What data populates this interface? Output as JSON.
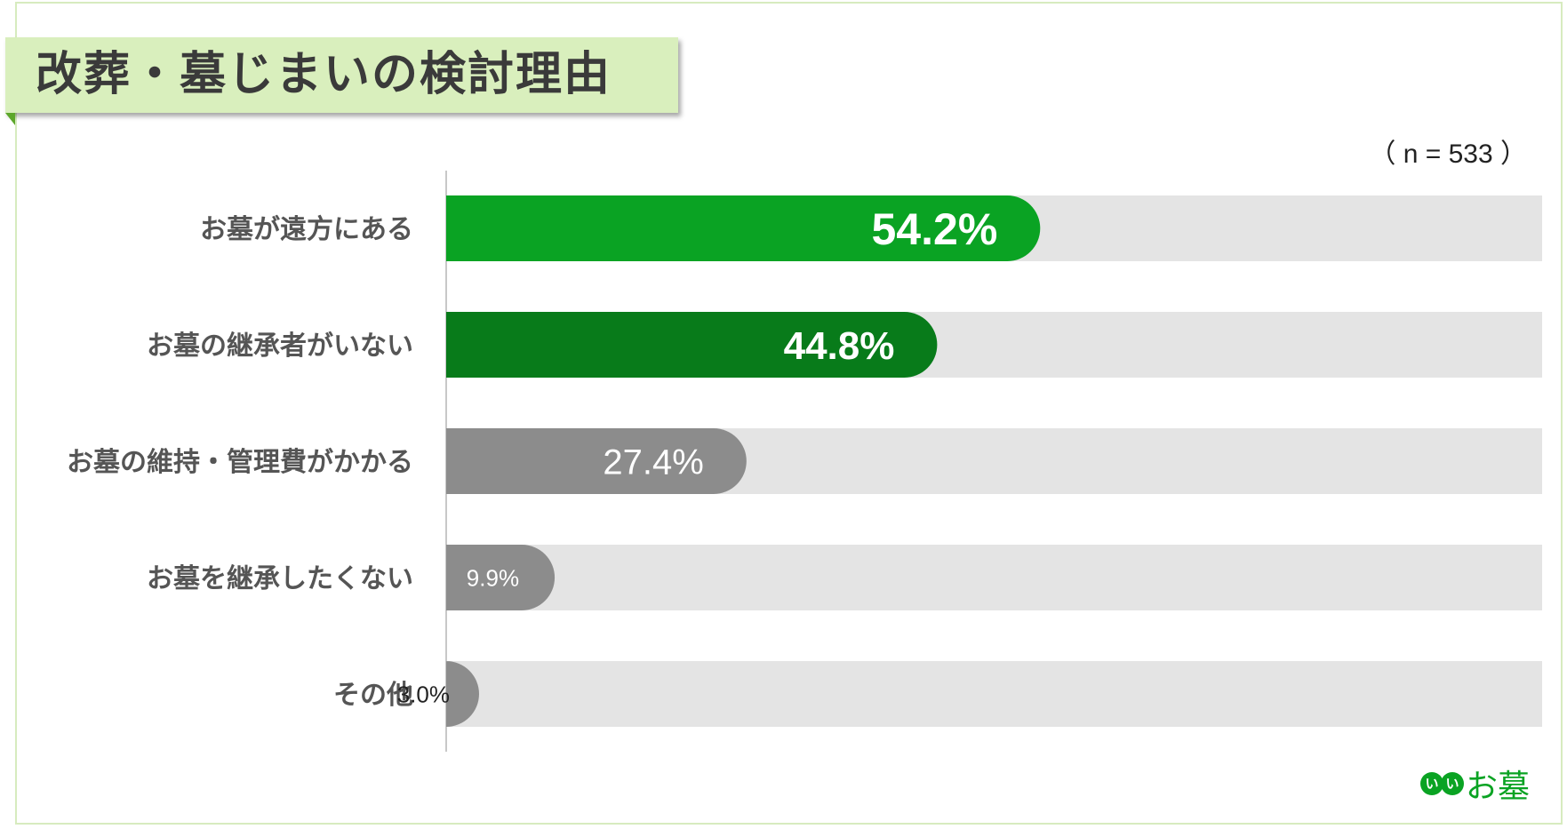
{
  "title": "改葬・墓じまいの検討理由",
  "sample_note": "（ n = 533 ）",
  "logo": {
    "mark_text": "い",
    "text": "お墓"
  },
  "chart_data": {
    "type": "bar",
    "orientation": "horizontal",
    "categories": [
      "お墓が遠方にある",
      "お墓の継承者がいない",
      "お墓の維持・管理費がかかる",
      "お墓を継承したくない",
      "その他"
    ],
    "values": [
      54.2,
      44.8,
      27.4,
      9.9,
      3.0
    ],
    "value_labels": [
      "54.2%",
      "44.8%",
      "27.4%",
      "9.9%",
      "3.0%"
    ],
    "unit": "%",
    "xlim": [
      0,
      100
    ],
    "bar_colors": [
      "#0aa323",
      "#087b1a",
      "#8c8c8c",
      "#8c8c8c",
      "#8c8c8c"
    ],
    "track_color": "#e4e4e4",
    "label_colors": [
      "#ffffff",
      "#ffffff",
      "#ffffff",
      "#ffffff",
      "#222222"
    ],
    "label_bold": [
      true,
      true,
      false,
      false,
      false
    ],
    "grid": false,
    "legend": "none"
  }
}
